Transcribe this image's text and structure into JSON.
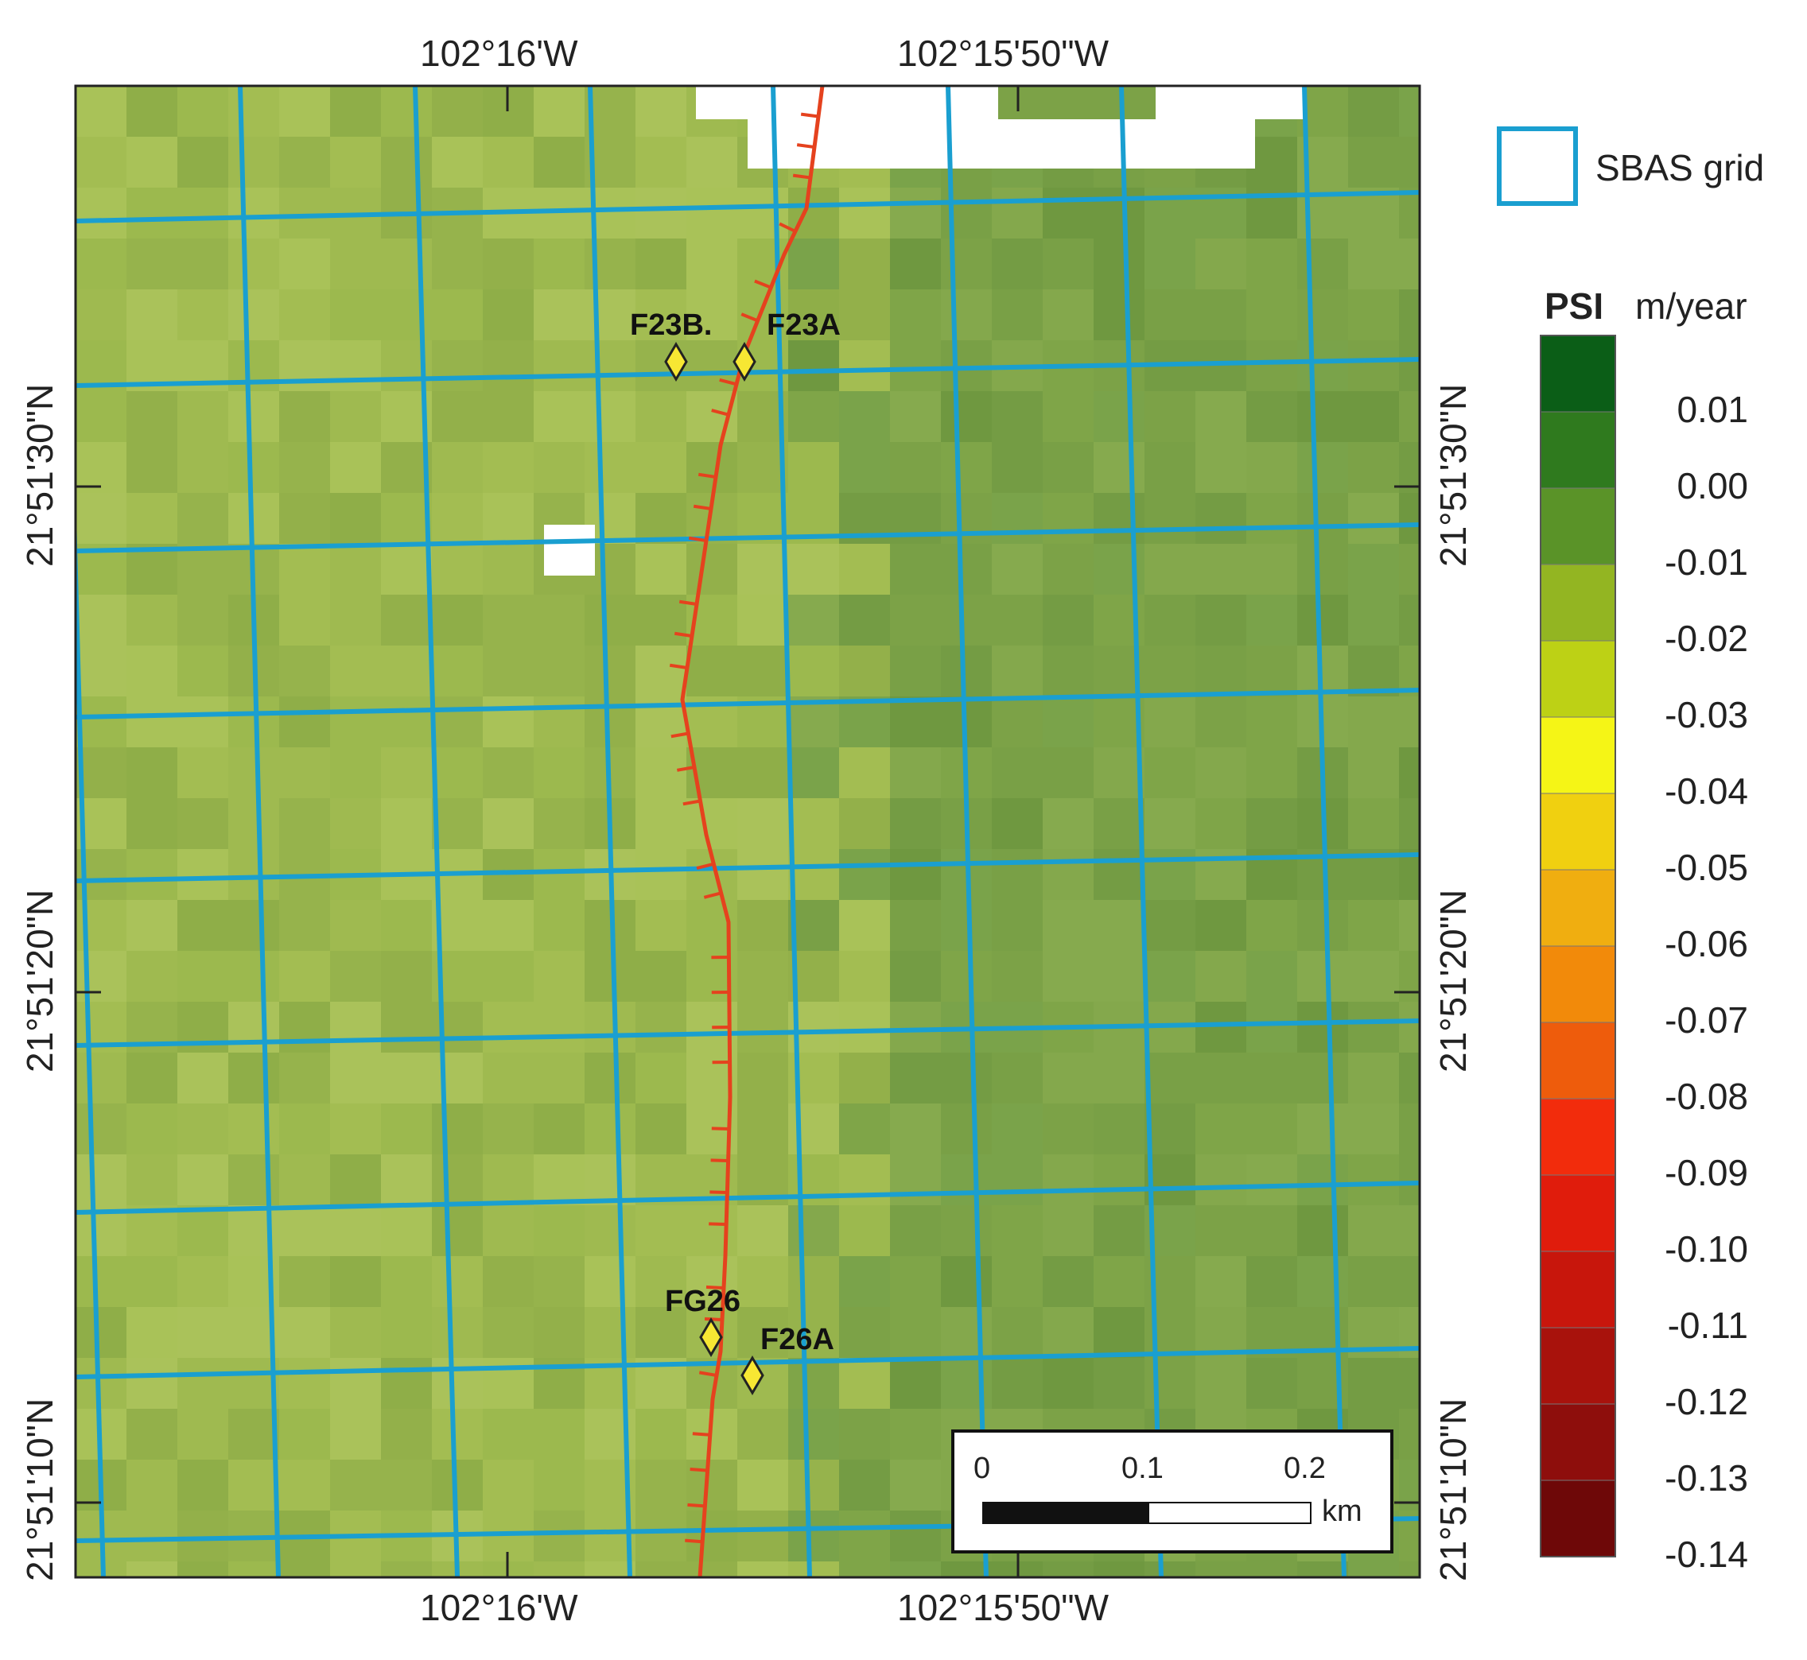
{
  "top_axis": {
    "left_label": "102°16'W",
    "right_label": "102°15'50\"W"
  },
  "bottom_axis": {
    "left_label": "102°16'W",
    "right_label": "102°15'50\"W"
  },
  "left_axis": {
    "labels": [
      "21°51'30\"N",
      "21°51'20\"N",
      "21°51'10\"N"
    ]
  },
  "right_axis": {
    "labels": [
      "21°51'30\"N",
      "21°51'20\"N",
      "21°51'10\"N"
    ]
  },
  "points": [
    {
      "name": "F23B.",
      "symbol": "yellow-diamond"
    },
    {
      "name": "F23A",
      "symbol": "yellow-diamond"
    },
    {
      "name": "FG26",
      "symbol": "yellow-diamond"
    },
    {
      "name": "F26A",
      "symbol": "yellow-diamond"
    }
  ],
  "legend": {
    "grid_label": "SBAS grid",
    "grid_color": "#1a9fd0",
    "colorbar_title": "PSI",
    "colorbar_unit": "m/year",
    "tick_values": [
      "0.01",
      "0.00",
      "-0.01",
      "-0.02",
      "-0.03",
      "-0.04",
      "-0.05",
      "-0.06",
      "-0.07",
      "-0.08",
      "-0.09",
      "-0.10",
      "-0.11",
      "-0.12",
      "-0.13",
      "-0.14"
    ],
    "class_colors": [
      "#0b5e17",
      "#2f7a1e",
      "#5a9328",
      "#93b522",
      "#bdd115",
      "#f5f516",
      "#f0d010",
      "#f0ae10",
      "#f28a0a",
      "#ee5c0c",
      "#f22c0c",
      "#e01c0c",
      "#c8160c",
      "#a8120c",
      "#8e0e0c",
      "#6e0808"
    ]
  },
  "scale_bar": {
    "labels": [
      "0",
      "0.1",
      "0.2"
    ],
    "unit": "km"
  },
  "fault_color": "#e5421e",
  "point_color": "#f7e733"
}
